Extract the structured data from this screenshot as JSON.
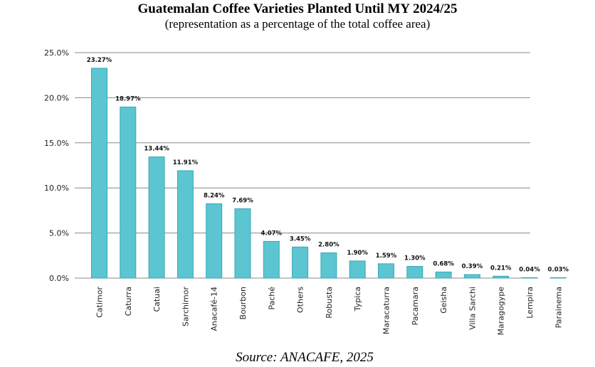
{
  "header": {
    "title": "Guatemalan Coffee Varieties Planted Until MY 2024/25",
    "subtitle": "(representation as a percentage of the total coffee area)"
  },
  "footer": {
    "source": "Source: ANACAFE, 2025"
  },
  "colors": {
    "bar": "#5bc5d1",
    "bar_edge": "#3aa8b5",
    "grid": "#888888"
  },
  "chart_data": {
    "type": "bar",
    "title": "Guatemalan Coffee Varieties Planted Until MY 2024/25",
    "subtitle": "(representation as a percentage of the total coffee area)",
    "xlabel": "",
    "ylabel": "",
    "ylim": [
      0,
      25
    ],
    "yticks": [
      "0.0%",
      "5.0%",
      "10.0%",
      "15.0%",
      "20.0%",
      "25.0%"
    ],
    "grid": true,
    "categories": [
      "Catimor",
      "Caturra",
      "Catuai",
      "Sarchimor",
      "Anacafé-14",
      "Bourbon",
      "Paché",
      "Others",
      "Robusta",
      "Typica",
      "Maracaturra",
      "Pacamara",
      "Geisha",
      "Villa Sarchi",
      "Maragogype",
      "Lempira",
      "Parainema"
    ],
    "values": [
      23.27,
      18.97,
      13.44,
      11.91,
      8.24,
      7.69,
      4.07,
      3.45,
      2.8,
      1.9,
      1.59,
      1.3,
      0.68,
      0.39,
      0.21,
      0.04,
      0.03
    ],
    "data_labels": [
      "23.27%",
      "18.97%",
      "13.44%",
      "11.91%",
      "8.24%",
      "7.69%",
      "4.07%",
      "3.45%",
      "2.80%",
      "1.90%",
      "1.59%",
      "1.30%",
      "0.68%",
      "0.39%",
      "0.21%",
      "0.04%",
      "0.03%"
    ]
  }
}
